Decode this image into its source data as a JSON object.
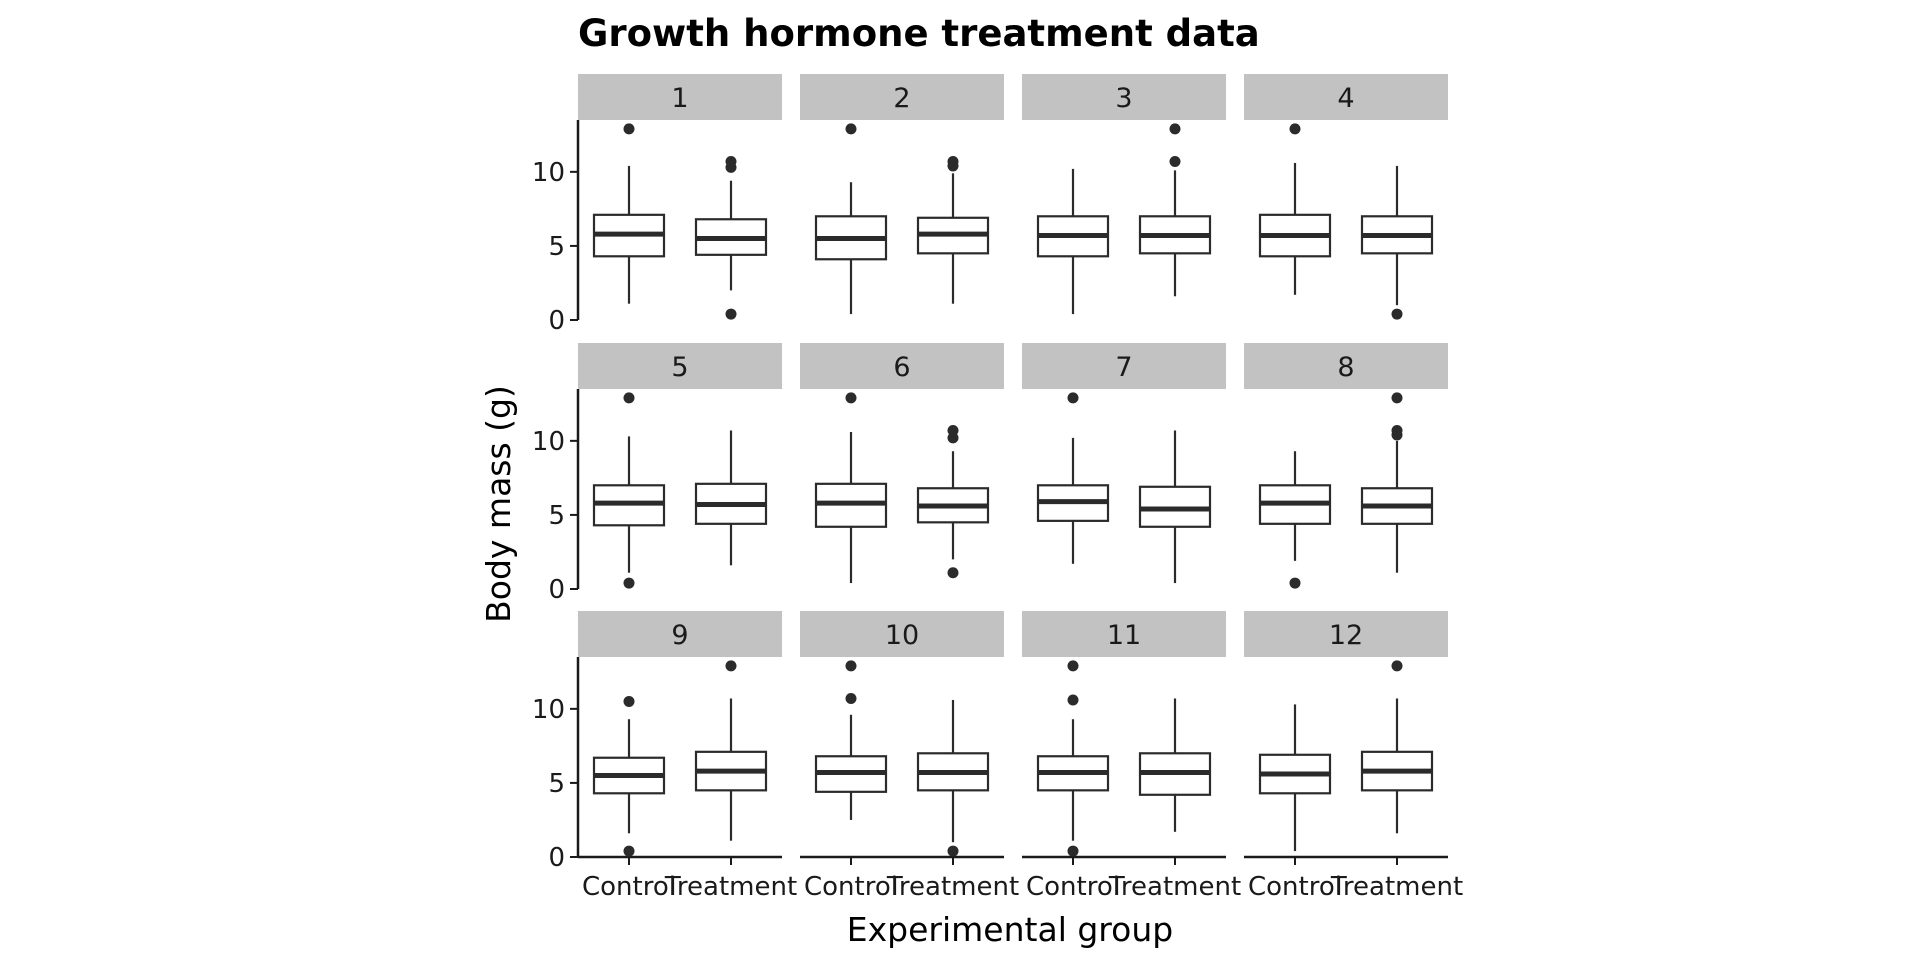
{
  "chart_data": {
    "type": "boxplot",
    "title": "Growth hormone treatment data",
    "xlabel": "Experimental group",
    "ylabel": "Body mass (g)",
    "categories": [
      "Control",
      "Treatment"
    ],
    "ylim": [
      0,
      13.5
    ],
    "yticks": [
      0,
      5,
      10
    ],
    "grid": false,
    "facet_layout": {
      "rows": 3,
      "cols": 4
    },
    "colors": {
      "strip": "#c2c2c2",
      "box_line": "#2b2b2b",
      "axis": "#1a1a1a"
    },
    "panels": [
      {
        "label": "1",
        "groups": [
          {
            "group": "Control",
            "lower_whisker": 1.1,
            "q1": 4.3,
            "median": 5.8,
            "q3": 7.1,
            "upper_whisker": 10.4,
            "outliers": [
              12.9
            ]
          },
          {
            "group": "Treatment",
            "lower_whisker": 2.0,
            "q1": 4.4,
            "median": 5.5,
            "q3": 6.8,
            "upper_whisker": 9.4,
            "outliers": [
              0.4,
              10.3,
              10.7
            ]
          }
        ]
      },
      {
        "label": "2",
        "groups": [
          {
            "group": "Control",
            "lower_whisker": 0.4,
            "q1": 4.1,
            "median": 5.5,
            "q3": 7.0,
            "upper_whisker": 9.3,
            "outliers": [
              12.9
            ]
          },
          {
            "group": "Treatment",
            "lower_whisker": 1.1,
            "q1": 4.5,
            "median": 5.8,
            "q3": 6.9,
            "upper_whisker": 9.9,
            "outliers": [
              10.4,
              10.7
            ]
          }
        ]
      },
      {
        "label": "3",
        "groups": [
          {
            "group": "Control",
            "lower_whisker": 0.4,
            "q1": 4.3,
            "median": 5.7,
            "q3": 7.0,
            "upper_whisker": 10.2,
            "outliers": []
          },
          {
            "group": "Treatment",
            "lower_whisker": 1.6,
            "q1": 4.5,
            "median": 5.7,
            "q3": 7.0,
            "upper_whisker": 10.1,
            "outliers": [
              10.7,
              12.9
            ]
          }
        ]
      },
      {
        "label": "4",
        "groups": [
          {
            "group": "Control",
            "lower_whisker": 1.7,
            "q1": 4.3,
            "median": 5.7,
            "q3": 7.1,
            "upper_whisker": 10.6,
            "outliers": [
              12.9
            ]
          },
          {
            "group": "Treatment",
            "lower_whisker": 1.0,
            "q1": 4.5,
            "median": 5.7,
            "q3": 7.0,
            "upper_whisker": 10.4,
            "outliers": [
              0.4
            ]
          }
        ]
      },
      {
        "label": "5",
        "groups": [
          {
            "group": "Control",
            "lower_whisker": 1.1,
            "q1": 4.3,
            "median": 5.8,
            "q3": 7.0,
            "upper_whisker": 10.3,
            "outliers": [
              0.4,
              12.9
            ]
          },
          {
            "group": "Treatment",
            "lower_whisker": 1.6,
            "q1": 4.4,
            "median": 5.7,
            "q3": 7.1,
            "upper_whisker": 10.7,
            "outliers": []
          }
        ]
      },
      {
        "label": "6",
        "groups": [
          {
            "group": "Control",
            "lower_whisker": 0.4,
            "q1": 4.2,
            "median": 5.8,
            "q3": 7.1,
            "upper_whisker": 10.6,
            "outliers": [
              12.9
            ]
          },
          {
            "group": "Treatment",
            "lower_whisker": 2.0,
            "q1": 4.5,
            "median": 5.6,
            "q3": 6.8,
            "upper_whisker": 9.3,
            "outliers": [
              1.1,
              10.2,
              10.7
            ]
          }
        ]
      },
      {
        "label": "7",
        "groups": [
          {
            "group": "Control",
            "lower_whisker": 1.7,
            "q1": 4.6,
            "median": 5.9,
            "q3": 7.0,
            "upper_whisker": 10.2,
            "outliers": [
              12.9
            ]
          },
          {
            "group": "Treatment",
            "lower_whisker": 0.4,
            "q1": 4.2,
            "median": 5.4,
            "q3": 6.9,
            "upper_whisker": 10.7,
            "outliers": []
          }
        ]
      },
      {
        "label": "8",
        "groups": [
          {
            "group": "Control",
            "lower_whisker": 1.9,
            "q1": 4.4,
            "median": 5.8,
            "q3": 7.0,
            "upper_whisker": 9.3,
            "outliers": [
              0.4
            ]
          },
          {
            "group": "Treatment",
            "lower_whisker": 1.1,
            "q1": 4.4,
            "median": 5.6,
            "q3": 6.8,
            "upper_whisker": 10.0,
            "outliers": [
              10.4,
              10.7,
              12.9
            ]
          }
        ]
      },
      {
        "label": "9",
        "groups": [
          {
            "group": "Control",
            "lower_whisker": 1.6,
            "q1": 4.3,
            "median": 5.5,
            "q3": 6.7,
            "upper_whisker": 9.3,
            "outliers": [
              0.4,
              10.5
            ]
          },
          {
            "group": "Treatment",
            "lower_whisker": 1.1,
            "q1": 4.5,
            "median": 5.8,
            "q3": 7.1,
            "upper_whisker": 10.7,
            "outliers": [
              12.9
            ]
          }
        ]
      },
      {
        "label": "10",
        "groups": [
          {
            "group": "Control",
            "lower_whisker": 2.5,
            "q1": 4.4,
            "median": 5.7,
            "q3": 6.8,
            "upper_whisker": 9.6,
            "outliers": [
              10.7,
              12.9
            ]
          },
          {
            "group": "Treatment",
            "lower_whisker": 1.0,
            "q1": 4.5,
            "median": 5.7,
            "q3": 7.0,
            "upper_whisker": 10.6,
            "outliers": [
              0.4
            ]
          }
        ]
      },
      {
        "label": "11",
        "groups": [
          {
            "group": "Control",
            "lower_whisker": 1.1,
            "q1": 4.5,
            "median": 5.7,
            "q3": 6.8,
            "upper_whisker": 9.3,
            "outliers": [
              0.4,
              10.6,
              12.9
            ]
          },
          {
            "group": "Treatment",
            "lower_whisker": 1.7,
            "q1": 4.2,
            "median": 5.7,
            "q3": 7.0,
            "upper_whisker": 10.7,
            "outliers": []
          }
        ]
      },
      {
        "label": "12",
        "groups": [
          {
            "group": "Control",
            "lower_whisker": 0.4,
            "q1": 4.3,
            "median": 5.6,
            "q3": 6.9,
            "upper_whisker": 10.3,
            "outliers": []
          },
          {
            "group": "Treatment",
            "lower_whisker": 1.6,
            "q1": 4.5,
            "median": 5.8,
            "q3": 7.1,
            "upper_whisker": 10.7,
            "outliers": [
              12.9
            ]
          }
        ]
      }
    ]
  }
}
